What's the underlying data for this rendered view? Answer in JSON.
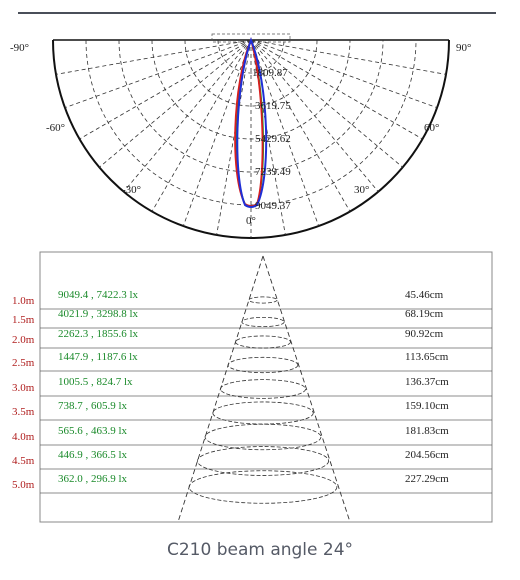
{
  "polar": {
    "angle_labels": {
      "left90": "-90°",
      "right90": "90°",
      "left60": "-60°",
      "right60": "60°",
      "left30": "-30°",
      "right30": "30°",
      "zero": "0°"
    },
    "intensity_labels": [
      "1809.87",
      "3619.75",
      "5429.62",
      "7239.49",
      "9049.37"
    ],
    "curve_colors": {
      "blue": "#1f2fd6",
      "red": "#d81e1e",
      "green": "#1a9a2a"
    }
  },
  "beam": {
    "distances": [
      "1.0m",
      "1.5m",
      "2.0m",
      "2.5m",
      "3.0m",
      "3.5m",
      "4.0m",
      "4.5m",
      "5.0m"
    ],
    "lux_values": [
      "9049.4 , 7422.3 lx",
      "4021.9 , 3298.8 lx",
      "2262.3 , 1855.6 lx",
      "1447.9 , 1187.6 lx",
      "1005.5 , 824.7 lx",
      "738.7 , 605.9 lx",
      "565.6 , 463.9 lx",
      "446.9 , 366.5 lx",
      "362.0 , 296.9 lx"
    ],
    "diameters": [
      "45.46cm",
      "68.19cm",
      "90.92cm",
      "113.65cm",
      "136.37cm",
      "159.10cm",
      "181.83cm",
      "204.56cm",
      "227.29cm"
    ],
    "colors": {
      "distance": "#b01e1e",
      "lux": "#1a8a2a",
      "diameter": "#222222"
    }
  },
  "caption": "C210 beam angle 24°"
}
